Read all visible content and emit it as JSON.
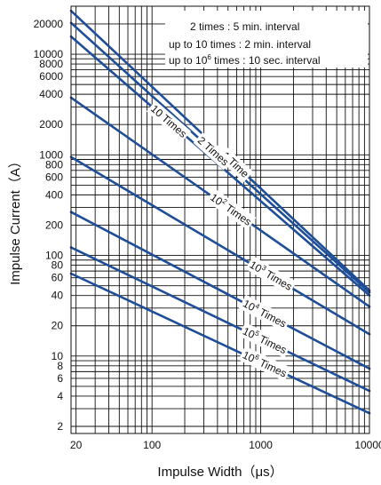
{
  "chart_data": {
    "type": "line",
    "xlabel": "Impulse Width（μs）",
    "ylabel": "Impulse Current（A）",
    "x_scale": "log",
    "y_scale": "log",
    "xlim": [
      18,
      10000
    ],
    "ylim": [
      1.7,
      30000
    ],
    "grid": true,
    "x_ticks": [
      {
        "value": 20,
        "label": "20"
      },
      {
        "value": 100,
        "label": "100"
      },
      {
        "value": 1000,
        "label": "1000"
      },
      {
        "value": 10000,
        "label": "10000"
      }
    ],
    "y_ticks": [
      {
        "value": 2,
        "label": "2"
      },
      {
        "value": 4,
        "label": "4"
      },
      {
        "value": 6,
        "label": "6"
      },
      {
        "value": 8,
        "label": "8"
      },
      {
        "value": 10,
        "label": "10"
      },
      {
        "value": 20,
        "label": "20"
      },
      {
        "value": 40,
        "label": "40"
      },
      {
        "value": 60,
        "label": "60"
      },
      {
        "value": 80,
        "label": "80"
      },
      {
        "value": 100,
        "label": "100"
      },
      {
        "value": 200,
        "label": "200"
      },
      {
        "value": 400,
        "label": "400"
      },
      {
        "value": 600,
        "label": "600"
      },
      {
        "value": 800,
        "label": "800"
      },
      {
        "value": 1000,
        "label": "1000"
      },
      {
        "value": 2000,
        "label": "2000"
      },
      {
        "value": 4000,
        "label": "4000"
      },
      {
        "value": 6000,
        "label": "6000"
      },
      {
        "value": 8000,
        "label": "8000"
      },
      {
        "value": 10000,
        "label": "10000"
      },
      {
        "value": 20000,
        "label": "20000"
      }
    ],
    "legend": {
      "placement": "top-right",
      "lines": [
        {
          "text": "2 times : 5 min. interval",
          "sup": ""
        },
        {
          "text": "up to 10 times : 2 min. interval",
          "sup": ""
        },
        {
          "pre": "up to 10",
          "sup": "6",
          "post": " times : 10 sec. interval"
        }
      ]
    },
    "series": [
      {
        "label_base": "1 Time",
        "label_sup": "",
        "x": [
          18,
          10000
        ],
        "y": [
          27000,
          45
        ]
      },
      {
        "label_base": "2 Times",
        "label_sup": "",
        "x": [
          18,
          10000
        ],
        "y": [
          20500,
          43
        ]
      },
      {
        "label_base": "10 Times",
        "label_sup": "",
        "x": [
          18,
          10000
        ],
        "y": [
          15000,
          40
        ]
      },
      {
        "label_base": "10",
        "label_sup": "2",
        "label_post": " Times",
        "x": [
          18,
          10000
        ],
        "y": [
          3700,
          31
        ]
      },
      {
        "label_base": "10",
        "label_sup": "3",
        "label_post": " Times",
        "x": [
          18,
          10000
        ],
        "y": [
          950,
          16.5
        ]
      },
      {
        "label_base": "10",
        "label_sup": "4",
        "label_post": " Times",
        "x": [
          18,
          10000
        ],
        "y": [
          270,
          7.5
        ]
      },
      {
        "label_base": "10",
        "label_sup": "5",
        "label_post": " Times",
        "x": [
          18,
          10000
        ],
        "y": [
          120,
          4.5
        ]
      },
      {
        "label_base": "10",
        "label_sup": "6",
        "label_post": " Times",
        "x": [
          18,
          10000
        ],
        "y": [
          66,
          2.7
        ]
      }
    ],
    "line_color": "#1f4e99"
  }
}
